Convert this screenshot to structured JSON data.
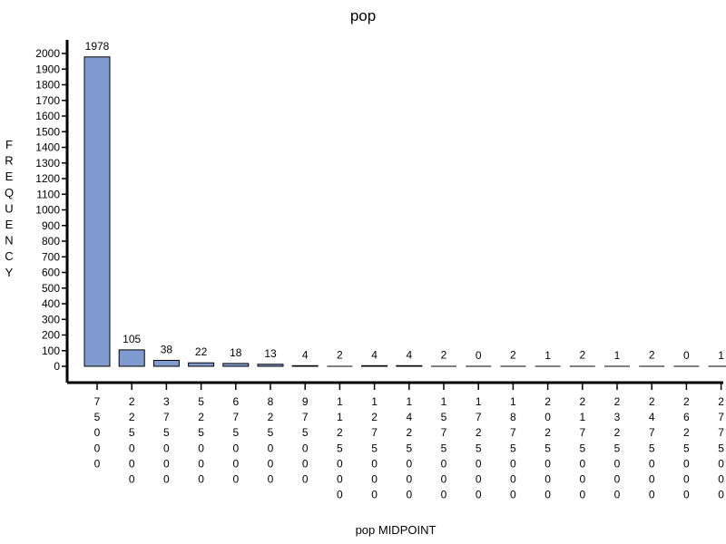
{
  "chart_data": {
    "type": "bar",
    "title": "pop",
    "xlabel": "pop MIDPOINT",
    "ylabel": "FREQUENCY",
    "categories": [
      "75000",
      "225000",
      "375000",
      "525000",
      "675000",
      "825000",
      "975000",
      "1125000",
      "1275000",
      "1425000",
      "1575000",
      "1725000",
      "1875000",
      "2025000",
      "2175000",
      "2325000",
      "2475000",
      "2625000",
      "2775000"
    ],
    "values": [
      1978,
      105,
      38,
      22,
      18,
      13,
      4,
      2,
      4,
      4,
      2,
      0,
      2,
      1,
      2,
      1,
      2,
      0,
      1
    ],
    "yticks": [
      0,
      100,
      200,
      300,
      400,
      500,
      600,
      700,
      800,
      900,
      1000,
      1100,
      1200,
      1300,
      1400,
      1500,
      1600,
      1700,
      1800,
      1900,
      2000
    ],
    "ylim": [
      0,
      2000
    ],
    "bar_color": "#7f9bcf",
    "bar_stroke": "#000000",
    "grid": false
  }
}
